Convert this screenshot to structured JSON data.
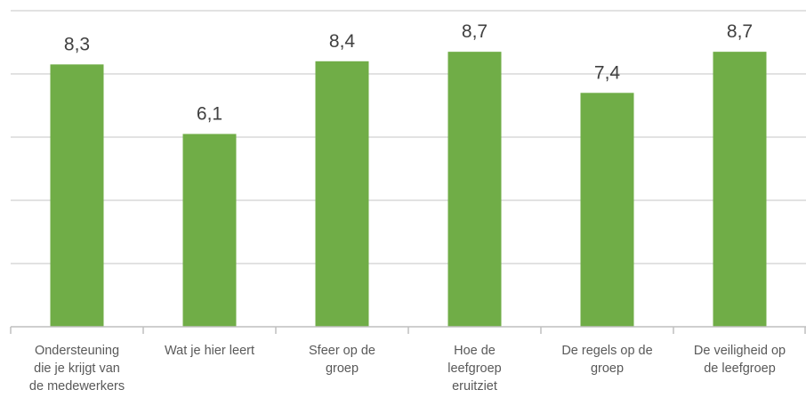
{
  "chart_data": {
    "type": "bar",
    "categories": [
      [
        "Ondersteuning",
        "die je krijgt van",
        "de medewerkers"
      ],
      [
        "Wat je hier leert"
      ],
      [
        "Sfeer op de",
        "groep"
      ],
      [
        "Hoe de",
        "leefgroep",
        "eruitziet"
      ],
      [
        "De regels op de",
        "groep"
      ],
      [
        "De veiligheid op",
        "de leefgroep"
      ]
    ],
    "values": [
      8.3,
      6.1,
      8.4,
      8.7,
      7.4,
      8.7
    ],
    "value_labels": [
      "8,3",
      "6,1",
      "8,4",
      "8,7",
      "7,4",
      "8,7"
    ],
    "ylim": [
      0,
      10
    ],
    "ytick_step": 2,
    "grid": true,
    "bar_color": "#70ad47",
    "title": "",
    "xlabel": "",
    "ylabel": ""
  }
}
